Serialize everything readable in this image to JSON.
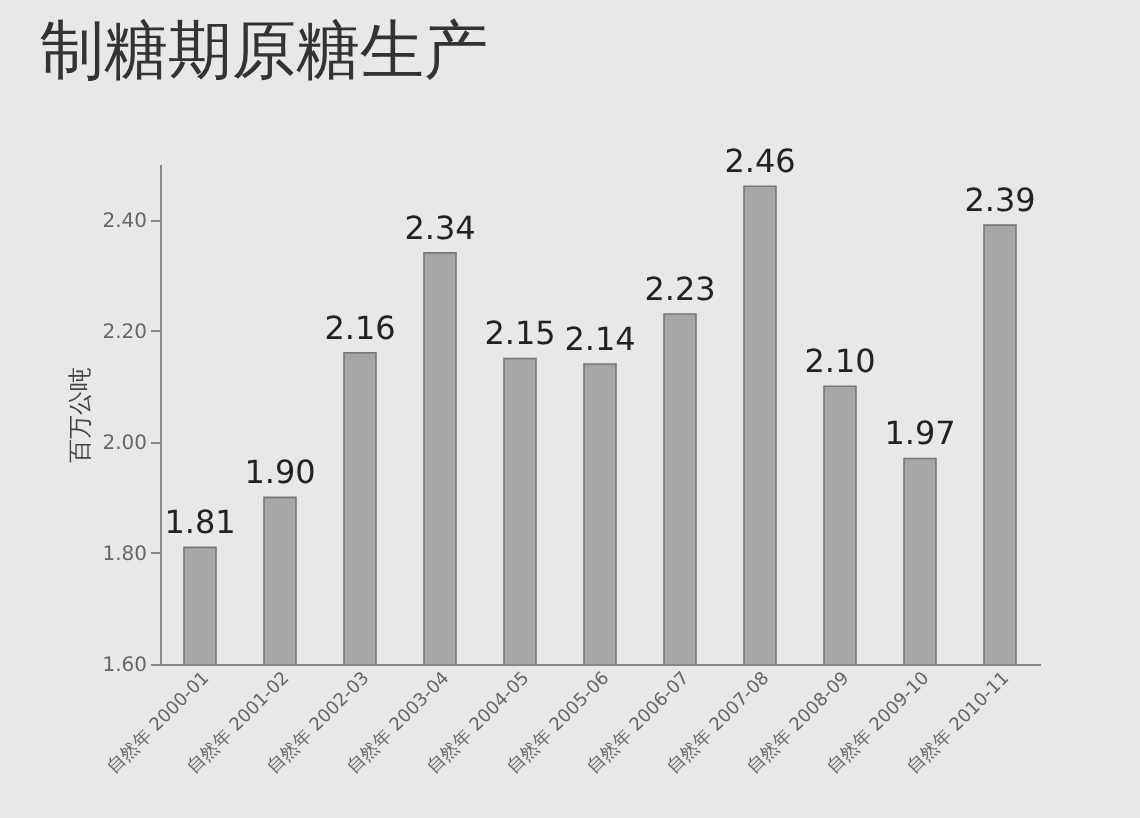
{
  "chart_data": {
    "type": "bar",
    "title": "制糖期原糖生产",
    "ylabel": "百万公吨",
    "categories": [
      "自然年 2000-01",
      "自然年 2001-02",
      "自然年 2002-03",
      "自然年 2003-04",
      "自然年 2004-05",
      "自然年 2005-06",
      "自然年 2006-07",
      "自然年 2007-08",
      "自然年 2008-09",
      "自然年 2009-10",
      "自然年 2010-11"
    ],
    "values": [
      1.81,
      1.9,
      2.16,
      2.34,
      2.15,
      2.14,
      2.23,
      2.46,
      2.1,
      1.97,
      2.39
    ],
    "value_labels": [
      "1.81",
      "1.90",
      "2.16",
      "2.34",
      "2.15",
      "2.14",
      "2.23",
      "2.46",
      "2.10",
      "1.97",
      "2.39"
    ],
    "color": "#a6a6a6",
    "ylim": [
      1.6,
      2.5
    ],
    "yticks": [
      {
        "value": 1.6,
        "label": "1.60"
      },
      {
        "value": 1.8,
        "label": "1.80"
      },
      {
        "value": 2.0,
        "label": "2.00"
      },
      {
        "value": 2.2,
        "label": "2.20"
      },
      {
        "value": 2.4,
        "label": "2.40"
      }
    ]
  }
}
